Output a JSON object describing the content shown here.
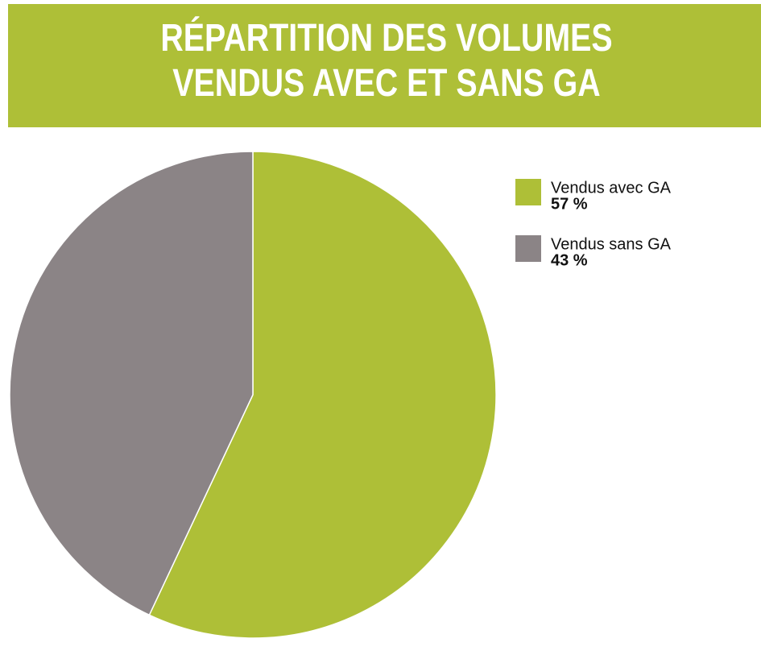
{
  "chart_data": {
    "type": "pie",
    "title": "RÉPARTITION DES VOLUMES VENDUS AVEC ET SANS GA",
    "categories": [
      "Vendus avec GA",
      "Vendus sans GA"
    ],
    "values": [
      57,
      43
    ],
    "value_labels": [
      "57 %",
      "43 %"
    ],
    "colors": [
      "#aebf37",
      "#8b8486"
    ],
    "legend": "right"
  }
}
